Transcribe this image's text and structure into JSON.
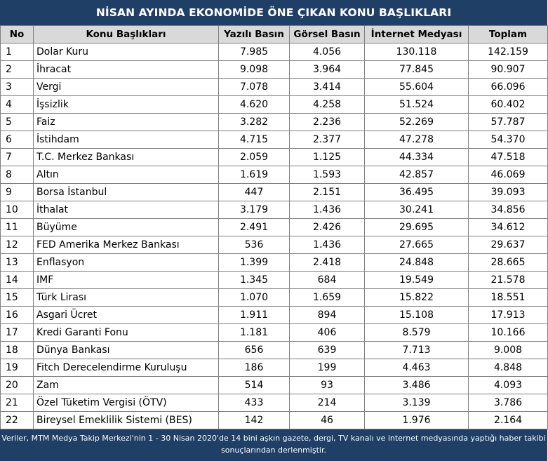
{
  "title": "NİSAN AYINDA EKONOMİDE ÖNE ÇIKAN KONU BAŞLIKLARI",
  "headers": {
    "no": "No",
    "topic": "Konu Başlıkları",
    "print": "Yazılı Basın",
    "visual": "Görsel Basın",
    "internet": "İnternet Medyası",
    "total": "Toplam"
  },
  "rows": [
    {
      "no": "1",
      "topic": "Dolar Kuru",
      "print": "7.985",
      "visual": "4.056",
      "internet": "130.118",
      "total": "142.159"
    },
    {
      "no": "2",
      "topic": "İhracat",
      "print": "9.098",
      "visual": "3.964",
      "internet": "77.845",
      "total": "90.907"
    },
    {
      "no": "3",
      "topic": "Vergi",
      "print": "7.078",
      "visual": "3.414",
      "internet": "55.604",
      "total": "66.096"
    },
    {
      "no": "4",
      "topic": "İşsizlik",
      "print": "4.620",
      "visual": "4.258",
      "internet": "51.524",
      "total": "60.402"
    },
    {
      "no": "5",
      "topic": "Faiz",
      "print": "3.282",
      "visual": "2.236",
      "internet": "52.269",
      "total": "57.787"
    },
    {
      "no": "6",
      "topic": "İstihdam",
      "print": "4.715",
      "visual": "2.377",
      "internet": "47.278",
      "total": "54.370"
    },
    {
      "no": "7",
      "topic": "T.C. Merkez Bankası",
      "print": "2.059",
      "visual": "1.125",
      "internet": "44.334",
      "total": "47.518"
    },
    {
      "no": "8",
      "topic": "Altın",
      "print": "1.619",
      "visual": "1.593",
      "internet": "42.857",
      "total": "46.069"
    },
    {
      "no": "9",
      "topic": "Borsa İstanbul",
      "print": "447",
      "visual": "2.151",
      "internet": "36.495",
      "total": "39.093"
    },
    {
      "no": "10",
      "topic": "İthalat",
      "print": "3.179",
      "visual": "1.436",
      "internet": "30.241",
      "total": "34.856"
    },
    {
      "no": "11",
      "topic": "Büyüme",
      "print": "2.491",
      "visual": "2.426",
      "internet": "29.695",
      "total": "34.612"
    },
    {
      "no": "12",
      "topic": "FED Amerika Merkez Bankası",
      "print": "536",
      "visual": "1.436",
      "internet": "27.665",
      "total": "29.637"
    },
    {
      "no": "13",
      "topic": "Enflasyon",
      "print": "1.399",
      "visual": "2.418",
      "internet": "24.848",
      "total": "28.665"
    },
    {
      "no": "14",
      "topic": "IMF",
      "print": "1.345",
      "visual": "684",
      "internet": "19.549",
      "total": "21.578"
    },
    {
      "no": "15",
      "topic": "Türk Lirası",
      "print": "1.070",
      "visual": "1.659",
      "internet": "15.822",
      "total": "18.551"
    },
    {
      "no": "16",
      "topic": "Asgari Ücret",
      "print": "1.911",
      "visual": "894",
      "internet": "15.108",
      "total": "17.913"
    },
    {
      "no": "17",
      "topic": "Kredi Garanti Fonu",
      "print": "1.181",
      "visual": "406",
      "internet": "8.579",
      "total": "10.166"
    },
    {
      "no": "18",
      "topic": "Dünya Bankası",
      "print": "656",
      "visual": "639",
      "internet": "7.713",
      "total": "9.008"
    },
    {
      "no": "19",
      "topic": "Fitch Derecelendirme Kuruluşu",
      "print": "186",
      "visual": "199",
      "internet": "4.463",
      "total": "4.848"
    },
    {
      "no": "20",
      "topic": "Zam",
      "print": "514",
      "visual": "93",
      "internet": "3.486",
      "total": "4.093"
    },
    {
      "no": "21",
      "topic": "Özel Tüketim Vergisi (ÖTV)",
      "print": "433",
      "visual": "214",
      "internet": "3.139",
      "total": "3.786"
    },
    {
      "no": "22",
      "topic": "Bireysel Emeklilik Sistemi (BES)",
      "print": "142",
      "visual": "46",
      "internet": "1.976",
      "total": "2.164"
    }
  ],
  "footnote": {
    "line1": "Veriler, MTM Medya Takip Merkezi'nin 1 - 30 Nisan 2020'de 14 bini aşkın gazete, dergi, TV kanalı ve internet medyasında yaptığı haber takibi",
    "line2": "sonuçlarından derlenmiştir."
  }
}
